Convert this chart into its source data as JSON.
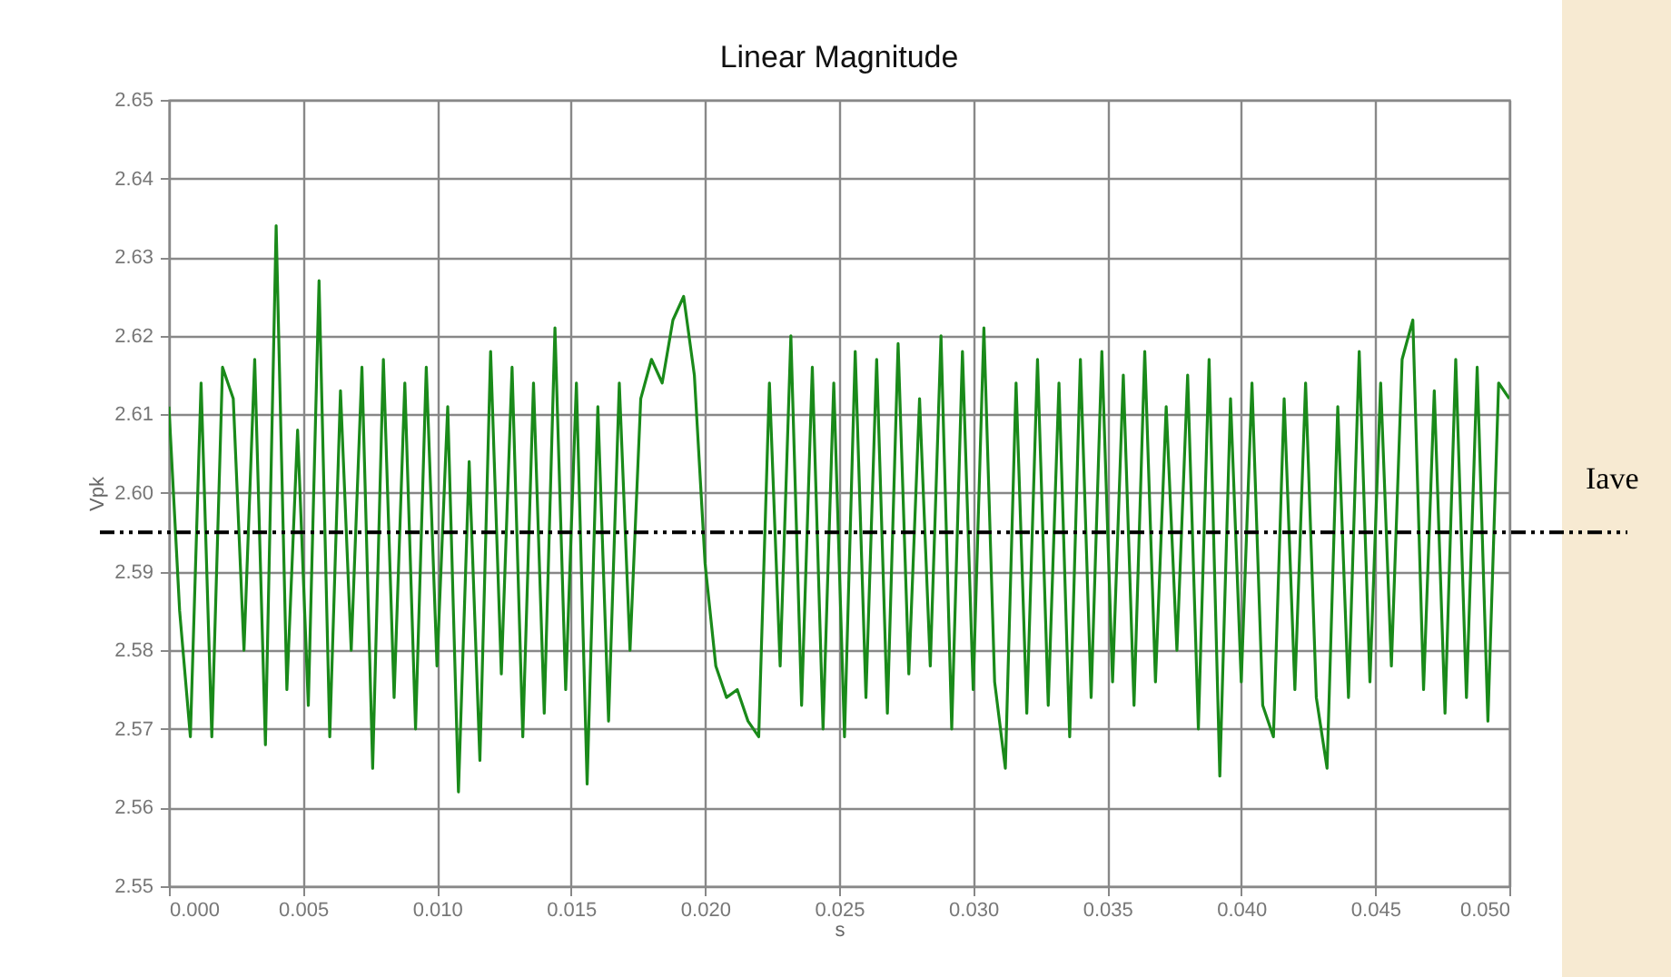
{
  "chart_data": {
    "type": "line",
    "title": "Linear Magnitude",
    "xlabel": "s",
    "ylabel": "Vpk",
    "xlim": [
      0,
      0.05
    ],
    "xticks": [
      {
        "value": 0,
        "label": "0.000"
      },
      {
        "value": 0.005,
        "label": "0.005"
      },
      {
        "value": 0.01,
        "label": "0.010"
      },
      {
        "value": 0.015,
        "label": "0.015"
      },
      {
        "value": 0.02,
        "label": "0.020"
      },
      {
        "value": 0.025,
        "label": "0.025"
      },
      {
        "value": 0.03,
        "label": "0.030"
      },
      {
        "value": 0.035,
        "label": "0.035"
      },
      {
        "value": 0.04,
        "label": "0.040"
      },
      {
        "value": 0.045,
        "label": "0.045"
      },
      {
        "value": 0.05,
        "label": "0.050"
      }
    ],
    "ylim": [
      2.55,
      2.65
    ],
    "yticks": [
      2.55,
      2.56,
      2.57,
      2.58,
      2.59,
      {
        "value": 2.6,
        "label": "2.60"
      },
      2.61,
      2.62,
      2.63,
      2.64,
      2.65
    ],
    "grid": true,
    "line_style": "solid",
    "ref_lines": [
      {
        "axis": "y",
        "value": 2.595,
        "label": "Iave",
        "color": "#000000",
        "line_style": "dashdot"
      }
    ],
    "x": [
      0,
      0.0004,
      0.0008,
      0.0012,
      0.0016,
      0.002,
      0.0024,
      0.0028,
      0.0032,
      0.0036,
      0.004,
      0.0044,
      0.0048,
      0.0052,
      0.0056,
      0.006,
      0.0064,
      0.0068,
      0.0072,
      0.0076,
      0.008,
      0.0084,
      0.0088,
      0.0092,
      0.0096,
      0.01,
      0.0104,
      0.0108,
      0.0112,
      0.0116,
      0.012,
      0.0124,
      0.0128,
      0.0132,
      0.0136,
      0.014,
      0.0144,
      0.0148,
      0.0152,
      0.0156,
      0.016,
      0.0164,
      0.0168,
      0.0172,
      0.0176,
      0.018,
      0.0184,
      0.0188,
      0.0192,
      0.0196,
      0.02,
      0.0204,
      0.0208,
      0.0212,
      0.0216,
      0.022,
      0.0224,
      0.0228,
      0.0232,
      0.0236,
      0.024,
      0.0244,
      0.0248,
      0.0252,
      0.0256,
      0.026,
      0.0264,
      0.0268,
      0.0272,
      0.0276,
      0.028,
      0.0284,
      0.0288,
      0.0292,
      0.0296,
      0.03,
      0.0304,
      0.0308,
      0.0312,
      0.0316,
      0.032,
      0.0324,
      0.0328,
      0.0332,
      0.0336,
      0.034,
      0.0344,
      0.0348,
      0.0352,
      0.0356,
      0.036,
      0.0364,
      0.0368,
      0.0372,
      0.0376,
      0.038,
      0.0384,
      0.0388,
      0.0392,
      0.0396,
      0.04,
      0.0404,
      0.0408,
      0.0412,
      0.0416,
      0.042,
      0.0424,
      0.0428,
      0.0432,
      0.0436,
      0.044,
      0.0444,
      0.0448,
      0.0452,
      0.0456,
      0.046,
      0.0464,
      0.0468,
      0.0472,
      0.0476,
      0.048,
      0.0484,
      0.0488,
      0.0492,
      0.0496,
      0.05
    ],
    "series": [
      {
        "color": "#1a8a1a",
        "values": [
          2.611,
          2.585,
          2.569,
          2.614,
          2.569,
          2.616,
          2.612,
          2.58,
          2.617,
          2.568,
          2.634,
          2.575,
          2.608,
          2.573,
          2.627,
          2.569,
          2.613,
          2.58,
          2.616,
          2.565,
          2.617,
          2.574,
          2.614,
          2.57,
          2.616,
          2.578,
          2.611,
          2.562,
          2.604,
          2.566,
          2.618,
          2.577,
          2.616,
          2.569,
          2.614,
          2.572,
          2.621,
          2.575,
          2.614,
          2.563,
          2.611,
          2.571,
          2.614,
          2.58,
          2.612,
          2.617,
          2.614,
          2.622,
          2.625,
          2.615,
          2.591,
          2.578,
          2.574,
          2.575,
          2.571,
          2.569,
          2.614,
          2.578,
          2.62,
          2.573,
          2.616,
          2.57,
          2.614,
          2.569,
          2.618,
          2.574,
          2.617,
          2.572,
          2.619,
          2.577,
          2.612,
          2.578,
          2.62,
          2.57,
          2.618,
          2.575,
          2.621,
          2.576,
          2.565,
          2.614,
          2.572,
          2.617,
          2.573,
          2.614,
          2.569,
          2.617,
          2.574,
          2.618,
          2.576,
          2.615,
          2.573,
          2.618,
          2.576,
          2.611,
          2.58,
          2.615,
          2.57,
          2.617,
          2.564,
          2.612,
          2.576,
          2.614,
          2.573,
          2.569,
          2.612,
          2.575,
          2.614,
          2.574,
          2.565,
          2.611,
          2.574,
          2.618,
          2.576,
          2.614,
          2.578,
          2.617,
          2.622,
          2.575,
          2.613,
          2.572,
          2.617,
          2.574,
          2.616,
          2.571,
          2.614,
          2.612
        ]
      }
    ]
  }
}
